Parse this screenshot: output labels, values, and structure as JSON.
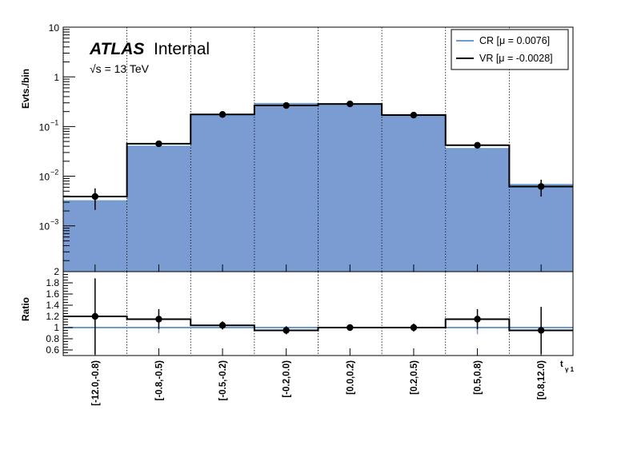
{
  "header": {
    "experiment": "ATLAS",
    "status": "Internal",
    "energy": "√s = 13 TeV"
  },
  "axes": {
    "main_ylabel": "Evts./bin",
    "ratio_ylabel": "Ratio",
    "xlabel_main": "t",
    "xlabel_sub": "γ 1"
  },
  "colors": {
    "cr": "#7a9cd2",
    "cr_line": "#6a9bd1",
    "vr": "#000000"
  },
  "chart_data": {
    "type": "bar",
    "categories": [
      "[-12.0,-0.8)",
      "[-0.8,-0.5)",
      "[-0.5,-0.2)",
      "[-0.2,0.0)",
      "[0.0,0.2)",
      "[0.2,0.5)",
      "[0.5,0.8)",
      "[0.8,12.0)"
    ],
    "main": {
      "yscale": "log",
      "ylim": [
        0.00012,
        10
      ],
      "yticks": [
        {
          "value": 10,
          "label": "10"
        },
        {
          "value": 1,
          "label": "1"
        },
        {
          "value": 0.1,
          "label": "10",
          "exp": "−1"
        },
        {
          "value": 0.01,
          "label": "10",
          "exp": "−2"
        },
        {
          "value": 0.001,
          "label": "10",
          "exp": "−3"
        }
      ],
      "series": [
        {
          "name": "CR [μ = 0.0076]",
          "style": "filled",
          "values": [
            0.0032,
            0.04,
            0.165,
            0.29,
            0.27,
            0.16,
            0.036,
            0.0068
          ]
        },
        {
          "name": "VR [μ = -0.0028]",
          "style": "step-points",
          "values": [
            0.0039,
            0.045,
            0.175,
            0.265,
            0.285,
            0.17,
            0.042,
            0.0062
          ],
          "err_low": [
            0.0018,
            0.005,
            0.013,
            0.02,
            0.02,
            0.013,
            0.005,
            0.0023
          ],
          "err_high": [
            0.0018,
            0.005,
            0.013,
            0.02,
            0.02,
            0.013,
            0.005,
            0.0023
          ]
        }
      ]
    },
    "ratio": {
      "ylim": [
        0.5,
        2.0
      ],
      "yticks": [
        "0.6",
        "0.8",
        "1",
        "1.2",
        "1.4",
        "1.6",
        "1.8",
        "2"
      ],
      "reference": 1.0,
      "values": [
        1.2,
        1.15,
        1.04,
        0.95,
        1.0,
        1.0,
        1.15,
        0.95
      ],
      "err": [
        0.68,
        0.18,
        0.07,
        0.07,
        0.04,
        0.07,
        0.18,
        0.42
      ],
      "cr_err_band": [
        0.0,
        0.1,
        0.04,
        0.03,
        0.02,
        0.04,
        0.12,
        0.0
      ]
    },
    "legend": {
      "position": "top-right"
    },
    "grid": {
      "x": "dotted-bin-edges",
      "y": false
    }
  }
}
